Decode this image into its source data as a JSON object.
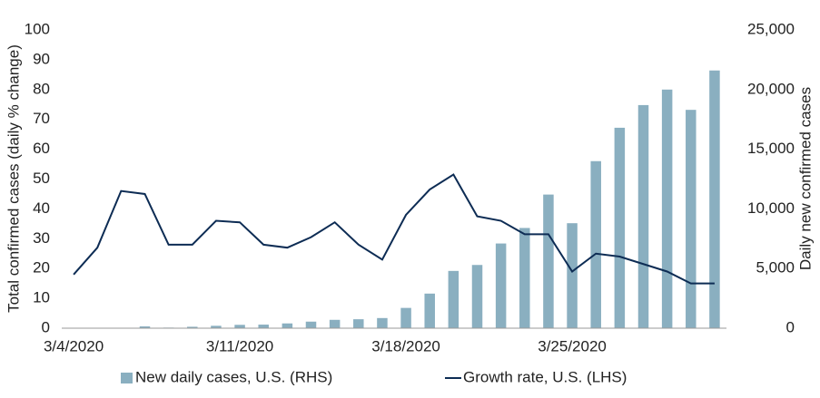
{
  "chart_data": {
    "type": "bar",
    "categories": [
      "3/4/2020",
      null,
      null,
      null,
      null,
      null,
      null,
      "3/11/2020",
      null,
      null,
      null,
      null,
      null,
      null,
      "3/18/2020",
      null,
      null,
      null,
      null,
      null,
      null,
      "3/25/2020",
      null,
      null,
      null,
      null,
      null,
      null
    ],
    "series": [
      {
        "name": "New daily cases, U.S. (RHS)",
        "type": "bar",
        "axis": "y2",
        "color": "#8aafc0",
        "values": [
          0,
          0,
          0,
          150,
          50,
          120,
          200,
          280,
          300,
          400,
          550,
          700,
          750,
          850,
          1700,
          2900,
          4800,
          5300,
          7100,
          8400,
          11200,
          8800,
          14000,
          16800,
          18700,
          20000,
          18300,
          21600
        ]
      },
      {
        "name": "Growth rate, U.S. (LHS)",
        "type": "line",
        "color": "#0d2c54",
        "values": [
          18,
          27,
          46,
          45,
          28,
          28,
          36,
          35.5,
          28,
          27,
          30.5,
          35.5,
          28,
          23,
          38,
          46.5,
          51.5,
          37.5,
          36,
          31.5,
          31.5,
          19,
          25,
          24,
          21.5,
          19,
          15,
          15
        ]
      }
    ],
    "ylabel": "Total confirmed cases (daily % change)",
    "y2label": "Daily new confirmed cases",
    "ylim": [
      0,
      100
    ],
    "yticks": [
      0,
      10,
      20,
      30,
      40,
      50,
      60,
      70,
      80,
      90,
      100
    ],
    "y2lim": [
      0,
      25000
    ],
    "y2ticks": [
      0,
      {
        "value": 5000,
        "label": "5,000"
      },
      {
        "value": 10000,
        "label": "10,000"
      },
      {
        "value": 15000,
        "label": "15,000"
      },
      {
        "value": 20000,
        "label": "20,000"
      },
      {
        "value": 25000,
        "label": "25,000"
      }
    ],
    "legend": "bottom"
  }
}
